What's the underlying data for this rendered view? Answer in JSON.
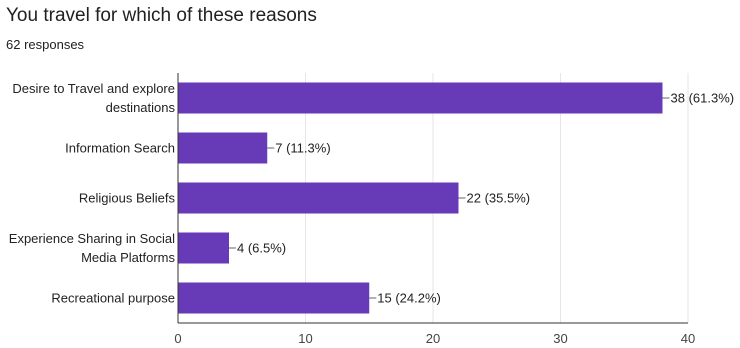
{
  "question": {
    "title": "You travel for which of these reasons",
    "responses": "62 responses"
  },
  "colors": {
    "bar": "#673ab7",
    "grid": "#e6e6e6",
    "axis": "#333333",
    "leader": "#666666"
  },
  "chart_data": {
    "type": "bar",
    "orientation": "horizontal",
    "title": "You travel for which of these reasons",
    "subtitle": "62 responses",
    "categories": [
      [
        "Desire to Travel and explore",
        "destinations"
      ],
      [
        "Information Search"
      ],
      [
        "Religious Beliefs"
      ],
      [
        "Experience Sharing in Social",
        "Media Platforms"
      ],
      [
        "Recreational purpose"
      ]
    ],
    "values": [
      38,
      7,
      22,
      4,
      15
    ],
    "data_labels": [
      "38 (61.3%)",
      "7 (11.3%)",
      "22 (35.5%)",
      "4 (6.5%)",
      "15 (24.2%)"
    ],
    "xlim": [
      0,
      40
    ],
    "xticks": [
      0,
      10,
      20,
      30,
      40
    ],
    "grid": true,
    "legend": "none"
  }
}
